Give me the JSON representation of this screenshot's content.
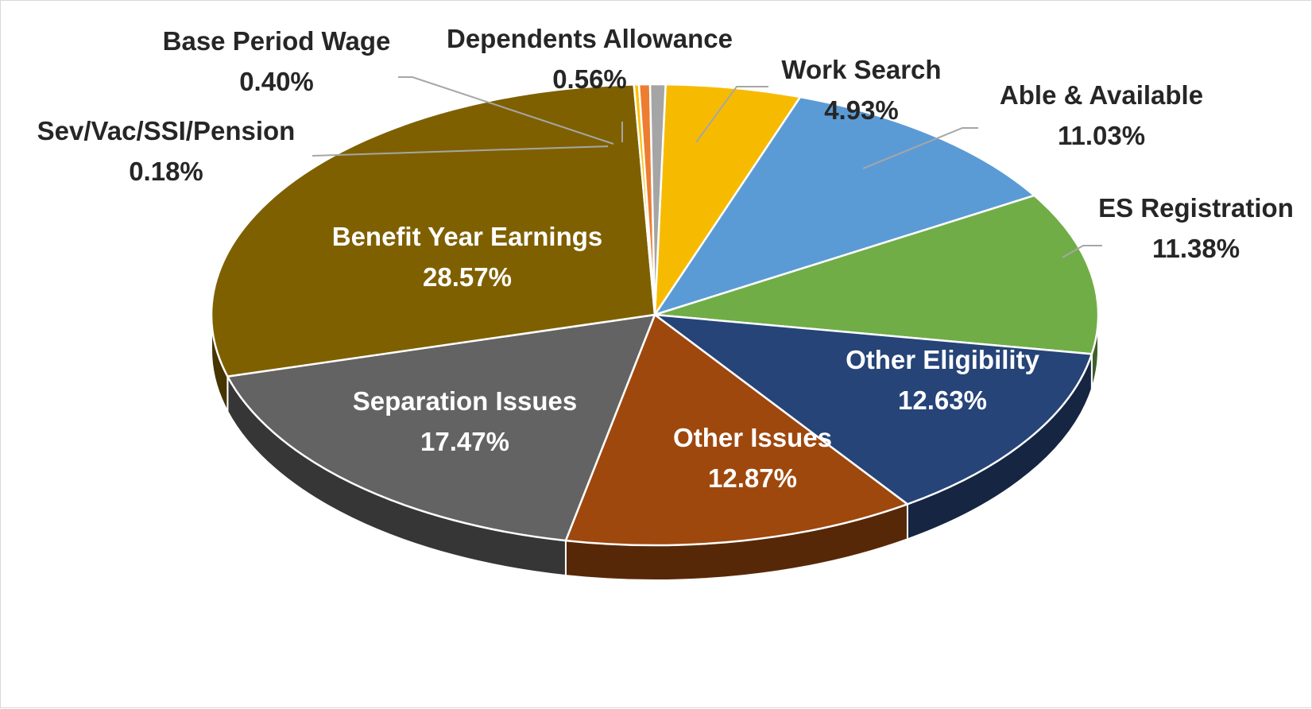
{
  "chart_data": {
    "type": "pie",
    "title": "",
    "slices": [
      {
        "label": "Work Search",
        "value": 4.93,
        "display": "4.93%",
        "color": "#F6BB00"
      },
      {
        "label": "Able & Available",
        "value": 11.03,
        "display": "11.03%",
        "color": "#5B9BD5"
      },
      {
        "label": "ES Registration",
        "value": 11.38,
        "display": "11.38%",
        "color": "#70AD47"
      },
      {
        "label": "Other Eligibility",
        "value": 12.63,
        "display": "12.63%",
        "color": "#264478"
      },
      {
        "label": "Other Issues",
        "value": 12.87,
        "display": "12.87%",
        "color": "#9E480E"
      },
      {
        "label": "Separation Issues",
        "value": 17.47,
        "display": "17.47%",
        "color": "#636363"
      },
      {
        "label": "Benefit Year Earnings",
        "value": 28.57,
        "display": "28.57%",
        "color": "#7F6000"
      },
      {
        "label": "Sev/Vac/SSI/Pension",
        "value": 0.18,
        "display": "0.18%",
        "color": "#FFC000"
      },
      {
        "label": "Base Period Wage",
        "value": 0.4,
        "display": "0.40%",
        "color": "#ED7D31"
      },
      {
        "label": "Dependents Allowance",
        "value": 0.56,
        "display": "0.56%",
        "color": "#A5A5A5"
      }
    ],
    "label_style": "name and percentage",
    "legend": "none",
    "three_d": true
  }
}
